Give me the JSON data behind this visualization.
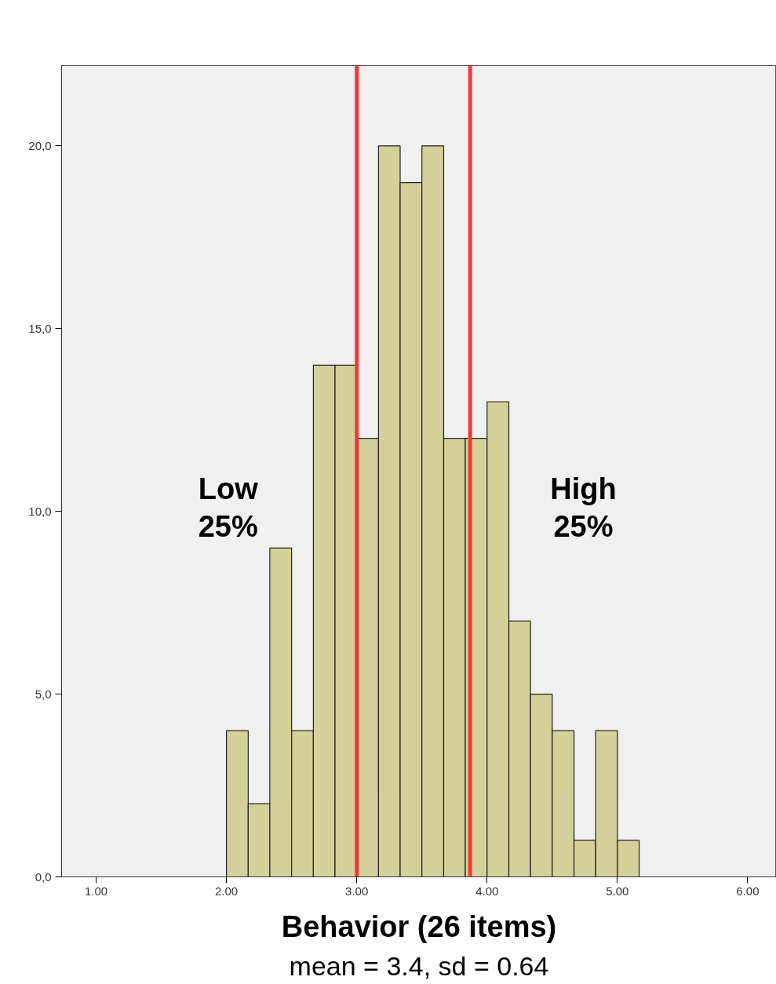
{
  "chart_data": {
    "type": "histogram",
    "xlabel": "Behavior (26 items)",
    "bins": [
      2,
      2.167,
      2.333,
      2.5,
      2.667,
      2.833,
      3,
      3.167,
      3.333,
      3.5,
      3.667,
      3.833,
      4,
      4.167,
      4.333,
      4.5,
      4.667,
      4.833,
      5,
      5.167
    ],
    "values": [
      4,
      2,
      9,
      4,
      14,
      14,
      12,
      20,
      19,
      20,
      12,
      12,
      13,
      7,
      5,
      4,
      1,
      4,
      1
    ],
    "color": "#d4d09a",
    "xlim": [
      0.735,
      6.22
    ],
    "xticks": [
      {
        "value": 1,
        "label": "1.00"
      },
      {
        "value": 2,
        "label": "2.00"
      },
      {
        "value": 3,
        "label": "3.00"
      },
      {
        "value": 4,
        "label": "4.00"
      },
      {
        "value": 5,
        "label": "5.00"
      },
      {
        "value": 6,
        "label": "6.00"
      }
    ],
    "ylim": [
      0,
      22.2
    ],
    "yticks": [
      {
        "value": 0,
        "label": "0,0"
      },
      {
        "value": 5,
        "label": "5,0"
      },
      {
        "value": 10,
        "label": "10,0"
      },
      {
        "value": 15,
        "label": "15,0"
      },
      {
        "value": 20,
        "label": "20,0"
      }
    ],
    "ref_lines": [
      {
        "axis": "x",
        "value": 3.0,
        "label": null,
        "color": "#f03a37"
      },
      {
        "axis": "x",
        "value": 3.87,
        "label": null,
        "color": "#f03a37"
      }
    ],
    "annotations": [
      "Low\n25%",
      "High\n25%",
      "mean = 3.4, sd = 0.64"
    ],
    "grid": false
  }
}
